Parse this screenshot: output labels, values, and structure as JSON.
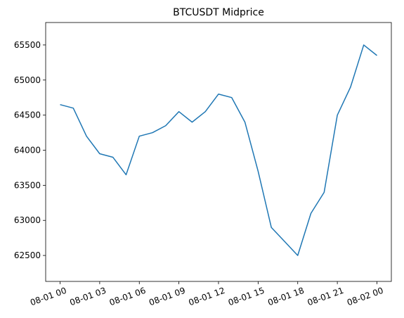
{
  "chart_data": {
    "type": "line",
    "title": "BTCUSDT Midprice",
    "x": [
      "08-01 00",
      "08-01 01",
      "08-01 02",
      "08-01 03",
      "08-01 04",
      "08-01 05",
      "08-01 06",
      "08-01 07",
      "08-01 08",
      "08-01 09",
      "08-01 10",
      "08-01 11",
      "08-01 12",
      "08-01 13",
      "08-01 14",
      "08-01 15",
      "08-01 16",
      "08-01 17",
      "08-01 18",
      "08-01 19",
      "08-01 20",
      "08-01 21",
      "08-01 22",
      "08-01 23",
      "08-02 00"
    ],
    "series": [
      {
        "name": "Midprice",
        "color": "#1f77b4",
        "values": [
          64650,
          64600,
          64200,
          63950,
          63900,
          63650,
          64200,
          64250,
          64350,
          64550,
          64400,
          64550,
          64800,
          64750,
          64400,
          63700,
          62900,
          62700,
          62500,
          63100,
          63400,
          64500,
          64900,
          65500,
          65350
        ]
      }
    ],
    "xticks": [
      "08-01 00",
      "08-01 03",
      "08-01 06",
      "08-01 09",
      "08-01 12",
      "08-01 15",
      "08-01 18",
      "08-01 21",
      "08-02 00"
    ],
    "ylim": [
      62130,
      65820
    ],
    "yticks": [
      62500,
      63000,
      63500,
      64000,
      64500,
      65000,
      65500
    ]
  }
}
